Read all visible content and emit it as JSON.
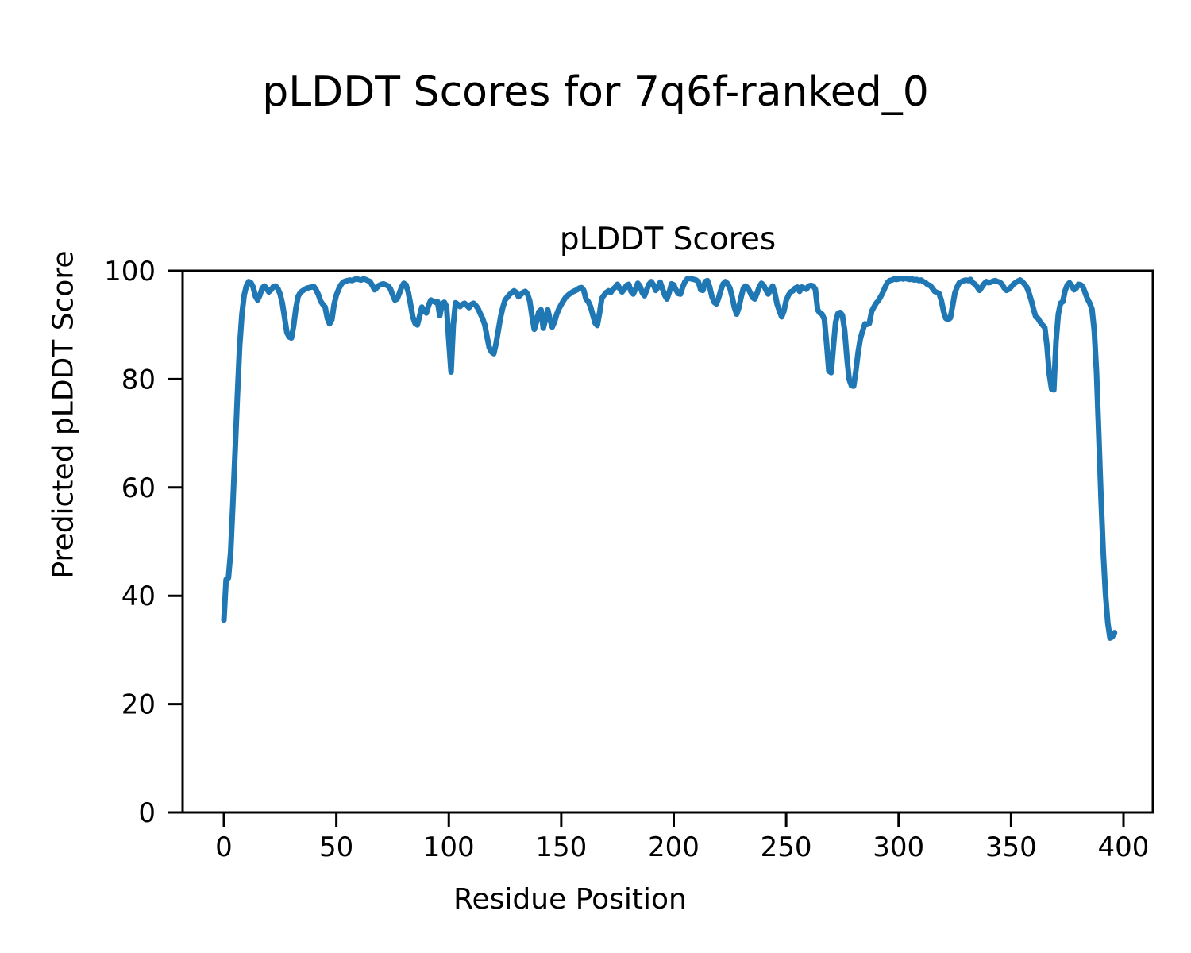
{
  "figure": {
    "title": "pLDDT Scores for 7q6f-ranked_0",
    "background_color": "#ffffff"
  },
  "chart_data": {
    "type": "line",
    "title": "pLDDT Scores",
    "xlabel": "Residue Position",
    "ylabel": "Predicted pLDDT Score",
    "xlim": [
      -18.4,
      413.1
    ],
    "ylim": [
      0,
      100
    ],
    "xticks": [
      0,
      50,
      100,
      150,
      200,
      250,
      300,
      350,
      400
    ],
    "yticks": [
      0,
      20,
      40,
      60,
      80,
      100
    ],
    "grid": false,
    "legend": "none",
    "line_color": "#1f77b4",
    "axis_color": "#000000",
    "series": [
      {
        "name": "pLDDT",
        "x_start": 0,
        "x_step": 1,
        "values": [
          35.5,
          43.0,
          43.3,
          48.0,
          57.0,
          67.0,
          77.0,
          86.0,
          92.0,
          95.5,
          97.2,
          98.0,
          97.8,
          97.0,
          95.3,
          94.6,
          95.5,
          96.8,
          97.2,
          96.7,
          96.1,
          96.5,
          97.1,
          97.2,
          96.7,
          95.7,
          94.0,
          91.3,
          88.6,
          87.8,
          87.6,
          89.8,
          93.0,
          95.3,
          96.0,
          96.3,
          96.6,
          96.8,
          96.9,
          97.0,
          97.1,
          96.5,
          95.6,
          94.4,
          93.8,
          93.3,
          91.2,
          90.2,
          91.0,
          93.8,
          95.5,
          96.6,
          97.4,
          97.9,
          98.1,
          98.2,
          98.3,
          98.2,
          98.4,
          98.5,
          98.4,
          98.3,
          98.5,
          98.4,
          98.2,
          98.0,
          97.3,
          96.5,
          96.9,
          97.3,
          97.5,
          97.6,
          97.4,
          97.2,
          96.7,
          95.6,
          94.6,
          94.8,
          95.8,
          97.0,
          97.7,
          97.4,
          96.0,
          93.8,
          91.5,
          90.3,
          90.0,
          91.6,
          93.3,
          92.7,
          92.2,
          93.6,
          94.6,
          94.4,
          94.2,
          94.3,
          91.7,
          93.9,
          94.2,
          93.4,
          87.0,
          81.3,
          90.0,
          94.1,
          93.8,
          93.4,
          93.8,
          94.0,
          93.6,
          93.2,
          93.8,
          94.0,
          93.6,
          93.0,
          92.1,
          91.2,
          90.0,
          87.8,
          85.8,
          85.0,
          84.7,
          86.5,
          89.0,
          91.4,
          93.2,
          94.6,
          95.1,
          95.6,
          96.0,
          96.3,
          96.0,
          95.2,
          95.6,
          96.0,
          96.2,
          95.7,
          94.4,
          91.6,
          89.2,
          90.6,
          92.4,
          92.8,
          89.4,
          91.0,
          92.8,
          91.0,
          89.6,
          90.6,
          92.0,
          93.0,
          93.8,
          94.5,
          95.1,
          95.5,
          95.8,
          96.1,
          96.3,
          96.5,
          96.8,
          96.9,
          96.4,
          94.8,
          94.3,
          93.4,
          91.9,
          90.4,
          89.9,
          92.1,
          94.9,
          95.5,
          96.0,
          96.3,
          96.0,
          96.6,
          97.0,
          97.5,
          96.7,
          96.1,
          96.6,
          97.3,
          97.5,
          96.2,
          95.7,
          96.6,
          97.7,
          97.2,
          96.0,
          95.4,
          96.5,
          97.5,
          98.0,
          97.4,
          96.4,
          97.0,
          97.9,
          96.7,
          95.5,
          94.8,
          96.0,
          97.6,
          97.4,
          96.5,
          95.8,
          95.7,
          97.0,
          98.0,
          98.5,
          98.6,
          98.5,
          98.4,
          98.3,
          97.9,
          96.5,
          96.4,
          98.0,
          98.2,
          97.0,
          95.2,
          94.2,
          93.9,
          95.0,
          96.5,
          97.6,
          98.0,
          97.6,
          96.8,
          95.2,
          93.2,
          92.0,
          93.2,
          95.2,
          96.8,
          97.2,
          96.8,
          96.0,
          95.1,
          94.8,
          95.8,
          97.0,
          97.7,
          97.3,
          96.5,
          95.7,
          96.5,
          97.2,
          95.8,
          93.8,
          92.6,
          91.5,
          92.6,
          94.5,
          95.5,
          96.1,
          96.3,
          96.8,
          97.0,
          96.2,
          97.0,
          96.8,
          96.6,
          97.2,
          97.3,
          97.2,
          96.6,
          92.8,
          92.2,
          92.0,
          91.0,
          86.5,
          81.5,
          81.2,
          86.0,
          90.5,
          92.1,
          92.3,
          91.8,
          89.0,
          84.0,
          80.0,
          78.8,
          78.7,
          81.5,
          85.0,
          87.5,
          88.9,
          90.2,
          90.1,
          90.3,
          92.5,
          93.3,
          94.0,
          94.5,
          95.2,
          96.0,
          97.0,
          97.8,
          98.2,
          98.3,
          98.5,
          98.4,
          98.5,
          98.6,
          98.5,
          98.6,
          98.5,
          98.4,
          98.5,
          98.3,
          98.4,
          98.2,
          98.3,
          98.0,
          97.8,
          97.4,
          97.3,
          96.8,
          96.2,
          96.0,
          95.8,
          94.5,
          92.5,
          91.2,
          91.0,
          91.3,
          93.5,
          95.9,
          97.0,
          97.8,
          98.0,
          98.2,
          98.3,
          98.2,
          98.4,
          97.8,
          97.5,
          97.0,
          96.4,
          97.0,
          97.6,
          98.0,
          97.8,
          97.9,
          98.1,
          98.2,
          98.0,
          97.9,
          97.5,
          96.8,
          96.4,
          96.6,
          97.0,
          97.5,
          97.8,
          98.1,
          98.3,
          98.0,
          97.5,
          97.0,
          95.9,
          94.5,
          92.9,
          91.5,
          91.2,
          90.5,
          90.0,
          89.5,
          86.0,
          81.0,
          78.2,
          78.0,
          87.0,
          92.0,
          94.0,
          94.3,
          96.3,
          97.4,
          97.8,
          97.2,
          96.5,
          96.8,
          97.5,
          97.4,
          97.0,
          95.9,
          94.8,
          94.0,
          92.9,
          88.9,
          81.3,
          70.0,
          58.0,
          48.0,
          40.5,
          35.0,
          32.2,
          32.4,
          33.2
        ]
      }
    ]
  }
}
